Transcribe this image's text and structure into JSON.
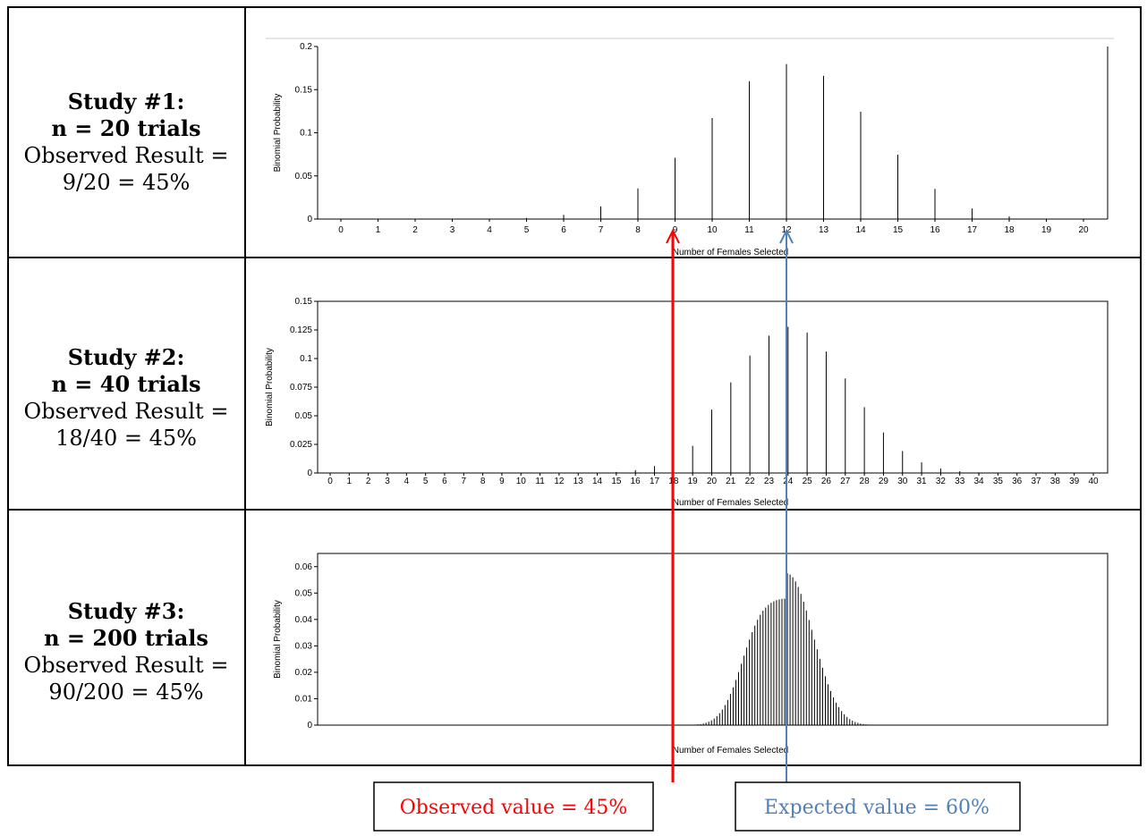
{
  "studies": [
    {
      "title": "Study #1:",
      "n_label": "n = 20 trials",
      "obs_line1": "Observed Result =",
      "obs_line2": "9/20 = 45%"
    },
    {
      "title": "Study #2:",
      "n_label": "n = 40 trials",
      "obs_line1": "Observed Result =",
      "obs_line2": "18/40 = 45%"
    },
    {
      "title": "Study #3:",
      "n_label": "n = 200 trials",
      "obs_line1": "Observed Result =",
      "obs_line2": "90/200 = 45%"
    }
  ],
  "callouts": {
    "observed": "Observed value = 45%",
    "expected": "Expected value = 60%",
    "observed_color": "#ff0000",
    "expected_color": "#4f81bd"
  },
  "chart_data": [
    {
      "type": "bar",
      "n": 20,
      "p": 0.6,
      "xlabel": "Number of Females Selected",
      "ylabel": "Binomial Probability",
      "yticks": [
        "0",
        "0.05",
        "0.1",
        "0.15",
        "0.2"
      ],
      "ylim": [
        0,
        0.2
      ],
      "show_xtick_labels": true,
      "x": [
        0,
        1,
        2,
        3,
        4,
        5,
        6,
        7,
        8,
        9,
        10,
        11,
        12,
        13,
        14,
        15,
        16,
        17,
        18,
        19,
        20
      ],
      "values": [
        0,
        0,
        0,
        0,
        0.0003,
        0.0013,
        0.0049,
        0.0146,
        0.0355,
        0.071,
        0.1171,
        0.1597,
        0.1797,
        0.1659,
        0.1244,
        0.0746,
        0.035,
        0.0123,
        0.0031,
        0.0005,
        0
      ]
    },
    {
      "type": "bar",
      "n": 40,
      "p": 0.6,
      "xlabel": "Number of Females Selected",
      "ylabel": "Binomial Probability",
      "yticks": [
        "0",
        "0.025",
        "0.05",
        "0.075",
        "0.1",
        "0.125",
        "0.15"
      ],
      "ylim": [
        0,
        0.15
      ],
      "show_xtick_labels": true,
      "x": [
        0,
        1,
        2,
        3,
        4,
        5,
        6,
        7,
        8,
        9,
        10,
        11,
        12,
        13,
        14,
        15,
        16,
        17,
        18,
        19,
        20,
        21,
        22,
        23,
        24,
        25,
        26,
        27,
        28,
        29,
        30,
        31,
        32,
        33,
        34,
        35,
        36,
        37,
        38,
        39,
        40
      ],
      "values": [
        0,
        0,
        0,
        0,
        0,
        0,
        0,
        0,
        0,
        0,
        0,
        0,
        0,
        0.0001,
        0.0003,
        0.0009,
        0.0025,
        0.0061,
        0.0132,
        0.0237,
        0.0554,
        0.0792,
        0.1026,
        0.12,
        0.1277,
        0.1228,
        0.1062,
        0.0826,
        0.0575,
        0.0354,
        0.0192,
        0.0093,
        0.004,
        0.0015,
        0.0005,
        0.0001,
        0,
        0,
        0,
        0,
        0
      ]
    },
    {
      "type": "bar",
      "n": 200,
      "p": 0.6,
      "xlabel": "Number of Females Selected",
      "ylabel": "Binomial Probability",
      "yticks": [
        "0",
        "0.01",
        "0.02",
        "0.03",
        "0.04",
        "0.05",
        "0.06"
      ],
      "ylim": [
        0,
        0.065
      ],
      "show_xtick_labels": false,
      "x_start": 96,
      "values": [
        0.0001,
        0.0002,
        0.0003,
        0.0004,
        0.0006,
        0.0009,
        0.0013,
        0.0018,
        0.0025,
        0.0034,
        0.0045,
        0.0059,
        0.0076,
        0.0095,
        0.0118,
        0.0143,
        0.0171,
        0.0201,
        0.0232,
        0.0263,
        0.0294,
        0.0324,
        0.0352,
        0.0377,
        0.0399,
        0.0418,
        0.0433,
        0.0445,
        0.0455,
        0.0463,
        0.0469,
        0.0473,
        0.0476,
        0.0478,
        0.0479,
        0.0575,
        0.057,
        0.056,
        0.0544,
        0.0523,
        0.0497,
        0.0467,
        0.0434,
        0.0398,
        0.0361,
        0.0324,
        0.0287,
        0.0251,
        0.0217,
        0.0185,
        0.0155,
        0.0129,
        0.0105,
        0.0085,
        0.0068,
        0.0053,
        0.0041,
        0.0031,
        0.0023,
        0.0017,
        0.0012,
        0.0009,
        0.0006,
        0.0004,
        0.0003,
        0.0002,
        0.0001
      ]
    }
  ]
}
